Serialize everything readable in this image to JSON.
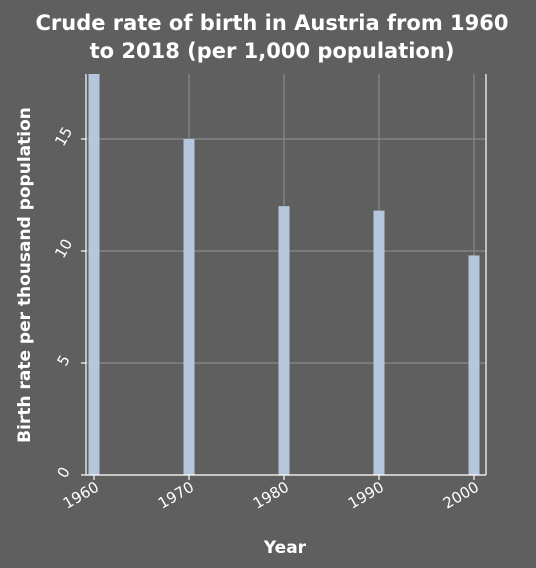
{
  "chart_data": {
    "type": "bar",
    "title": "Crude rate of birth in Austria from 1960 to 2018 (per 1,000 population)",
    "title_lines": [
      "Crude rate of birth in Austria from 1960",
      "to 2018 (per 1,000 population)"
    ],
    "xlabel": "Year",
    "ylabel": "Birth rate per thousand population",
    "x": [
      1960,
      1970,
      1980,
      1990,
      2000
    ],
    "values": [
      17.9,
      15.0,
      12.0,
      11.8,
      9.8
    ],
    "xlim": [
      1960,
      2000
    ],
    "ylim": [
      0,
      17.9
    ],
    "xticks": [
      "1960",
      "1970",
      "1980",
      "1990",
      "2000"
    ],
    "yticks": [
      "0",
      "5",
      "10",
      "15"
    ],
    "grid": true,
    "legend": "none",
    "colors": {
      "background": "#5f5f5f",
      "bar": "#b4c7dd",
      "grid": "#8a8a8a",
      "text": "#ffffff"
    }
  }
}
